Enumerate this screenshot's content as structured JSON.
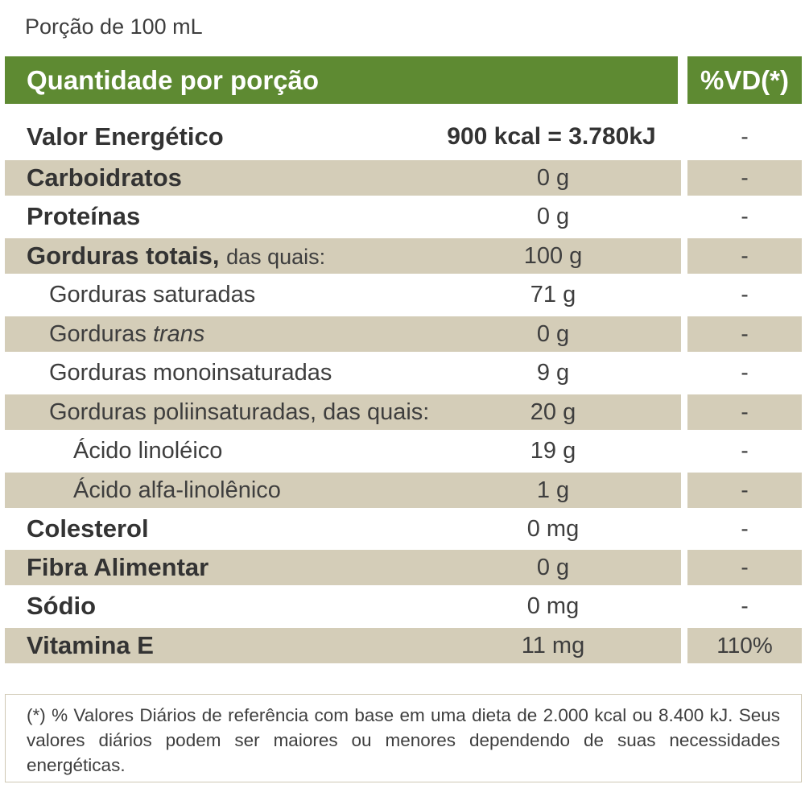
{
  "portion": "Porção de 100 mL",
  "header": {
    "quantity": "Quantidade por porção",
    "dv": "%VD(*)"
  },
  "rows": [
    {
      "label": "Valor Energético",
      "suffix": "",
      "amount": "900 kcal = 3.780kJ",
      "dv": "-"
    },
    {
      "label": "Carboidratos",
      "suffix": "",
      "amount": "0 g",
      "dv": "-"
    },
    {
      "label": "Proteínas",
      "suffix": "",
      "amount": "0 g",
      "dv": "-"
    },
    {
      "label": "Gorduras totais,",
      "suffix": "das quais:",
      "amount": "100 g",
      "dv": "-"
    },
    {
      "label": "Gorduras saturadas",
      "suffix": "",
      "amount": "71 g",
      "dv": "-"
    },
    {
      "label": "Gorduras",
      "suffix": "trans",
      "amount": "0 g",
      "dv": "-"
    },
    {
      "label": "Gorduras monoinsaturadas",
      "suffix": "",
      "amount": "9 g",
      "dv": "-"
    },
    {
      "label": "Gorduras poliinsaturadas, das quais:",
      "suffix": "",
      "amount": "20 g",
      "dv": "-"
    },
    {
      "label": "Ácido linoléico",
      "suffix": "",
      "amount": "19 g",
      "dv": "-"
    },
    {
      "label": "Ácido alfa-linolênico",
      "suffix": "",
      "amount": "1 g",
      "dv": "-"
    },
    {
      "label": "Colesterol",
      "suffix": "",
      "amount": "0 mg",
      "dv": "-"
    },
    {
      "label": "Fibra Alimentar",
      "suffix": "",
      "amount": "0 g",
      "dv": "-"
    },
    {
      "label": "Sódio",
      "suffix": "",
      "amount": "0 mg",
      "dv": "-"
    },
    {
      "label": "Vitamina E",
      "suffix": "",
      "amount": "11 mg",
      "dv": "110%"
    }
  ],
  "footnote": "(*) % Valores Diários de referência com base em uma dieta de 2.000 kcal ou 8.400 kJ. Seus valores diários podem ser maiores ou menores dependendo de suas necessidades energéticas.",
  "colors": {
    "header_green": "#5e8a32",
    "row_shade": "#d4cdb8"
  }
}
